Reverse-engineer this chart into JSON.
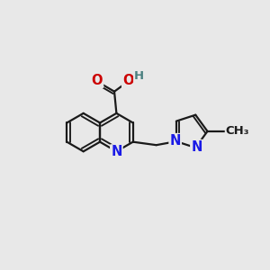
{
  "bg_color": "#e8e8e8",
  "bond_color": "#1a1a1a",
  "bond_width": 1.6,
  "atom_colors": {
    "N": "#1a1ae6",
    "O": "#cc0000",
    "H": "#4a8080",
    "C": "#1a1a1a"
  },
  "font_size": 10.5,
  "font_size_small": 9.5
}
